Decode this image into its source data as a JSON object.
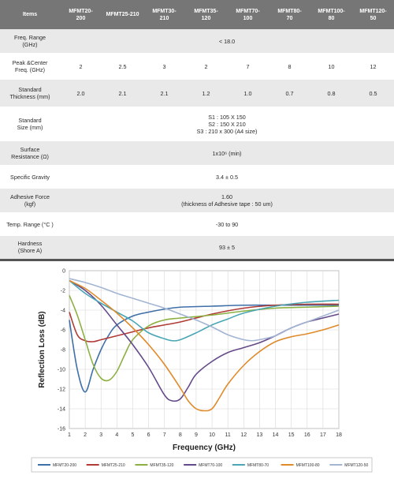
{
  "table": {
    "header": [
      "Items",
      "MFMT20-\n200",
      "MFMT25-210",
      "MFMT30-\n210",
      "MFMT35-\n120",
      "MFMT70-\n100",
      "MFMT80-\n70",
      "MFMT100-\n80",
      "MFMT120-\n50"
    ],
    "rows": [
      {
        "label": "Freq. Range\n(GHz)",
        "span": "< 18.0"
      },
      {
        "label": "Peak &Center\nFreq. (GHz)",
        "values": [
          "2",
          "2.5",
          "3",
          "2",
          "7",
          "8",
          "10",
          "12"
        ]
      },
      {
        "label": "Standard\nThickness (mm)",
        "values": [
          "2.0",
          "2.1",
          "2.1",
          "1.2",
          "1.0",
          "0.7",
          "0.8",
          "0.5"
        ]
      },
      {
        "label": "Standard\nSize (mm)",
        "span": "S1 : 105 X 150\nS2 : 150 X 210\nS3 : 210 x 300 (A4 size)"
      },
      {
        "label": "Surface\nResistance (Ω)",
        "span": "1x10⁶ (min)"
      },
      {
        "label": "Specific Gravity",
        "span": "3.4 ± 0.5"
      },
      {
        "label": "Adhesive Force\n(kgf)",
        "span": "1.60\n(thickness of Adhesive tape : 50 um)"
      },
      {
        "label": "Temp. Range (°C )",
        "span": "-30  to 90"
      },
      {
        "label": "Hardness\n(Shore A)",
        "span": "93 ± 5"
      }
    ]
  },
  "chart_data": {
    "type": "line",
    "title": "",
    "xlabel": "Frequency (GHz)",
    "ylabel": "Reflection Loss (dB)",
    "xlim": [
      1,
      18
    ],
    "ylim": [
      -16,
      0
    ],
    "xticks": [
      "1",
      "2",
      "3",
      "4",
      "5",
      "6",
      "7",
      "8",
      "9",
      "10",
      "11",
      "12",
      "13",
      "14",
      "15",
      "16",
      "17",
      "18"
    ],
    "yticks": [
      "0",
      "-2",
      "-4",
      "-6",
      "-8",
      "-10",
      "-12",
      "-14",
      "-16"
    ],
    "grid": true,
    "legend_position": "bottom",
    "series": [
      {
        "name": "MFMT20-200",
        "color": "#3f6fa8",
        "x": [
          1,
          1.5,
          2,
          2.5,
          3,
          3.5,
          4,
          5,
          6,
          7,
          8,
          10,
          12,
          14,
          16,
          18
        ],
        "y": [
          -5,
          -10,
          -12.3,
          -10,
          -8,
          -6.5,
          -5.5,
          -4.6,
          -4.2,
          -3.9,
          -3.7,
          -3.6,
          -3.5,
          -3.5,
          -3.5,
          -3.5
        ]
      },
      {
        "name": "MFMT25-210",
        "color": "#b03a35",
        "x": [
          1,
          1.5,
          2,
          2.5,
          3,
          4,
          5,
          6,
          7,
          8,
          10,
          12,
          14,
          16,
          18
        ],
        "y": [
          -4.2,
          -6.5,
          -7.1,
          -7.2,
          -7,
          -6.6,
          -6.2,
          -5.8,
          -5.5,
          -5.2,
          -4.4,
          -3.8,
          -3.5,
          -3.4,
          -3.4
        ]
      },
      {
        "name": "MFMT35-120",
        "color": "#8db043",
        "x": [
          1,
          1.5,
          2,
          2.5,
          3,
          3.5,
          4,
          4.5,
          5,
          6,
          7,
          8,
          10,
          12,
          14,
          16,
          18
        ],
        "y": [
          -2.5,
          -4.5,
          -7,
          -9.5,
          -10.9,
          -11.1,
          -10.2,
          -8.5,
          -7,
          -5.6,
          -5,
          -4.8,
          -4.5,
          -4.1,
          -3.8,
          -3.7,
          -3.6
        ]
      },
      {
        "name": "MFMT70-100",
        "color": "#654a8a",
        "x": [
          1,
          2,
          3,
          4,
          5,
          6,
          7,
          7.5,
          8,
          8.5,
          9,
          10,
          11,
          12,
          13,
          14,
          15,
          16,
          17,
          18
        ],
        "y": [
          -1,
          -2,
          -3.5,
          -5.5,
          -7.5,
          -9.8,
          -12.6,
          -13.2,
          -13,
          -11.8,
          -10.5,
          -9.2,
          -8.3,
          -7.8,
          -7.3,
          -6.6,
          -5.8,
          -5.2,
          -4.8,
          -4.4
        ]
      },
      {
        "name": "MFMT80-70",
        "color": "#4aa6b5",
        "x": [
          1,
          2,
          3,
          4,
          5,
          6,
          7,
          7.5,
          8,
          9,
          10,
          11,
          12,
          14,
          16,
          18
        ],
        "y": [
          -1,
          -2.3,
          -3.3,
          -4.2,
          -5.1,
          -6.3,
          -6.9,
          -7.1,
          -7,
          -6.3,
          -5.5,
          -4.9,
          -4.3,
          -3.6,
          -3.2,
          -3.0
        ]
      },
      {
        "name": "MFMT100-80",
        "color": "#e08a2a",
        "x": [
          1,
          2,
          3,
          4,
          5,
          6,
          7,
          8,
          8.5,
          9,
          9.5,
          10,
          10.5,
          11,
          12,
          13,
          14,
          15,
          16,
          17,
          18
        ],
        "y": [
          -1,
          -1.8,
          -3,
          -4.3,
          -5.8,
          -7.5,
          -9.5,
          -11.9,
          -13.2,
          -14,
          -14.2,
          -14,
          -12.8,
          -11.5,
          -9.6,
          -8.2,
          -7.2,
          -6.7,
          -6.4,
          -6,
          -5.5
        ]
      },
      {
        "name": "MFMT120-50",
        "color": "#a3b5d3",
        "x": [
          1,
          2,
          3,
          4,
          5,
          6,
          7,
          8,
          9,
          10,
          11,
          12,
          12.5,
          13,
          14,
          15,
          16,
          17,
          18
        ],
        "y": [
          -0.8,
          -1.2,
          -1.7,
          -2.3,
          -2.8,
          -3.3,
          -3.8,
          -4.4,
          -5,
          -5.7,
          -6.5,
          -7,
          -7.1,
          -7,
          -6.6,
          -5.8,
          -5.2,
          -4.6,
          -4.0
        ]
      }
    ]
  }
}
